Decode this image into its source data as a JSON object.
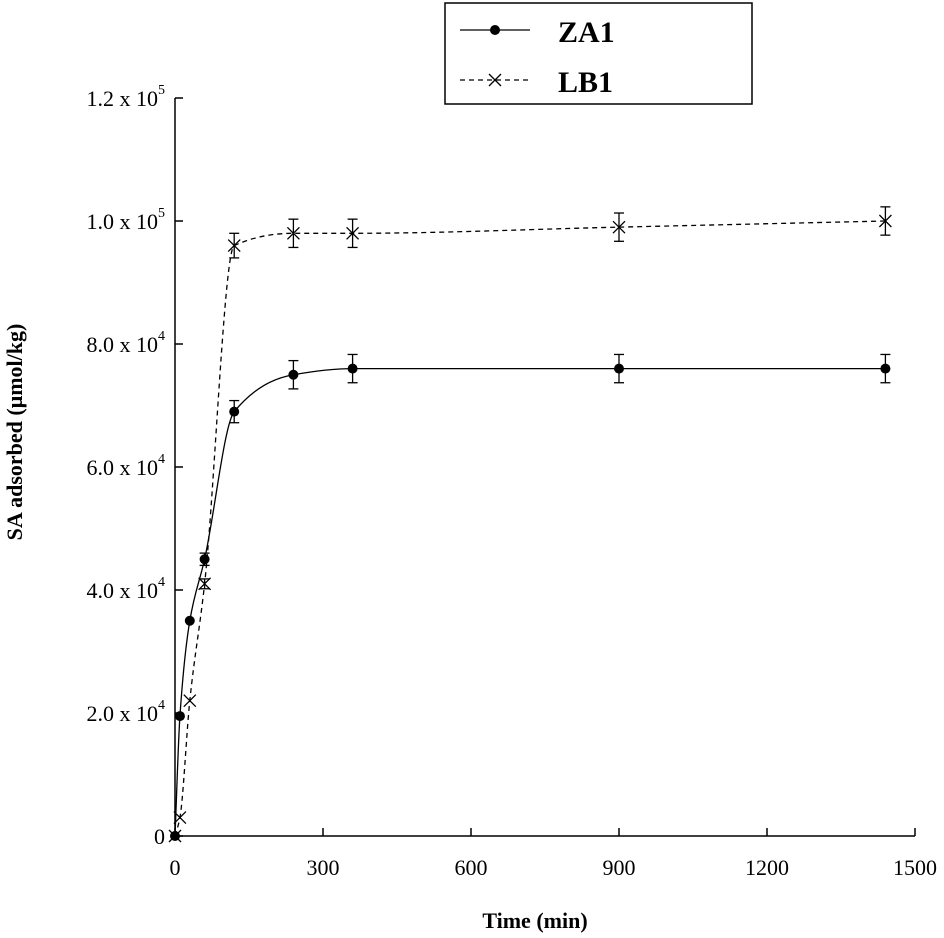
{
  "chart_data": {
    "type": "line",
    "xlabel": "Time (min)",
    "ylabel": "SA adsorbed (μmol/kg)",
    "xlim": [
      0,
      1500
    ],
    "ylim": [
      0,
      120000
    ],
    "x_ticks": [
      0,
      300,
      600,
      900,
      1200,
      1500
    ],
    "x_tick_labels": [
      "0",
      "300",
      "600",
      "900",
      "1200",
      "1500"
    ],
    "y_ticks": [
      {
        "value": 0,
        "mantissa": "0",
        "exp": ""
      },
      {
        "value": 20000,
        "mantissa": "2.0 x 10",
        "exp": "4"
      },
      {
        "value": 40000,
        "mantissa": "4.0 x 10",
        "exp": "4"
      },
      {
        "value": 60000,
        "mantissa": "6.0 x 10",
        "exp": "4"
      },
      {
        "value": 80000,
        "mantissa": "8.0 x 10",
        "exp": "4"
      },
      {
        "value": 100000,
        "mantissa": "1.0 x 10",
        "exp": "5"
      },
      {
        "value": 120000,
        "mantissa": "1.2 x 10",
        "exp": "5"
      }
    ],
    "legend_position": "top-center",
    "grid": false,
    "series": [
      {
        "name": "ZA1",
        "marker": "circle",
        "line_style": "solid",
        "x": [
          0,
          10,
          30,
          60,
          120,
          240,
          360,
          900,
          1440
        ],
        "y": [
          0,
          19500,
          35000,
          45000,
          69000,
          75000,
          76000,
          76000,
          76000
        ],
        "error": [
          0,
          0,
          0,
          1000,
          1800,
          2300,
          2300,
          2300,
          2300
        ]
      },
      {
        "name": "LB1",
        "marker": "x",
        "line_style": "dashed",
        "x": [
          0,
          10,
          30,
          60,
          120,
          240,
          360,
          900,
          1440
        ],
        "y": [
          0,
          3000,
          22000,
          41000,
          96000,
          98000,
          98000,
          99000,
          100000
        ],
        "error": [
          0,
          0,
          0,
          800,
          2000,
          2300,
          2300,
          2300,
          2300
        ]
      }
    ]
  }
}
